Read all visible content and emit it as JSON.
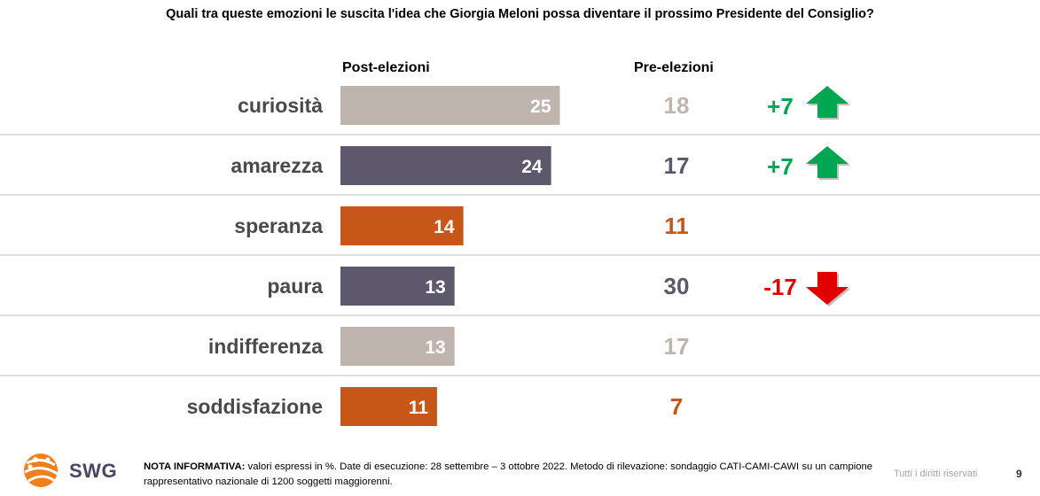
{
  "title": "Quali tra queste emozioni le suscita l'idea che Giorgia Meloni possa diventare il prossimo Presidente del Consiglio?",
  "chart_data": {
    "type": "bar",
    "orientation": "horizontal",
    "categories": [
      "curiosità",
      "amarezza",
      "speranza",
      "paura",
      "indifferenza",
      "soddisfazione"
    ],
    "series": [
      {
        "name": "Post-elezioni",
        "values": [
          25,
          24,
          14,
          13,
          13,
          11
        ]
      },
      {
        "name": "Pre-elezioni",
        "values": [
          18,
          17,
          11,
          30,
          17,
          7
        ]
      }
    ],
    "differences": [
      "+7",
      "+7",
      "",
      "-17",
      "",
      ""
    ],
    "diff_direction": [
      "up",
      "up",
      "",
      "down",
      "",
      ""
    ],
    "bar_colors": [
      "#c0b5ae",
      "#5e586c",
      "#c65718",
      "#5e586c",
      "#c0b5ae",
      "#c65718"
    ],
    "up_color": "#00a651",
    "down_color": "#e00000",
    "xlim": [
      0,
      30
    ]
  },
  "columns": {
    "post": "Post-elezioni",
    "pre": "Pre-elezioni"
  },
  "footer": {
    "note_label": "NOTA INFORMATIVA:",
    "note_text": " valori espressi in %. Date di esecuzione: 28 settembre – 3 ottobre 2022. Metodo di rilevazione: sondaggio CATI-CAMI-CAWI su un campione rappresentativo nazionale di 1200 soggetti maggiorenni.",
    "rights": "Tutti i diritti riservati",
    "page": "9",
    "logo": "SWG"
  }
}
